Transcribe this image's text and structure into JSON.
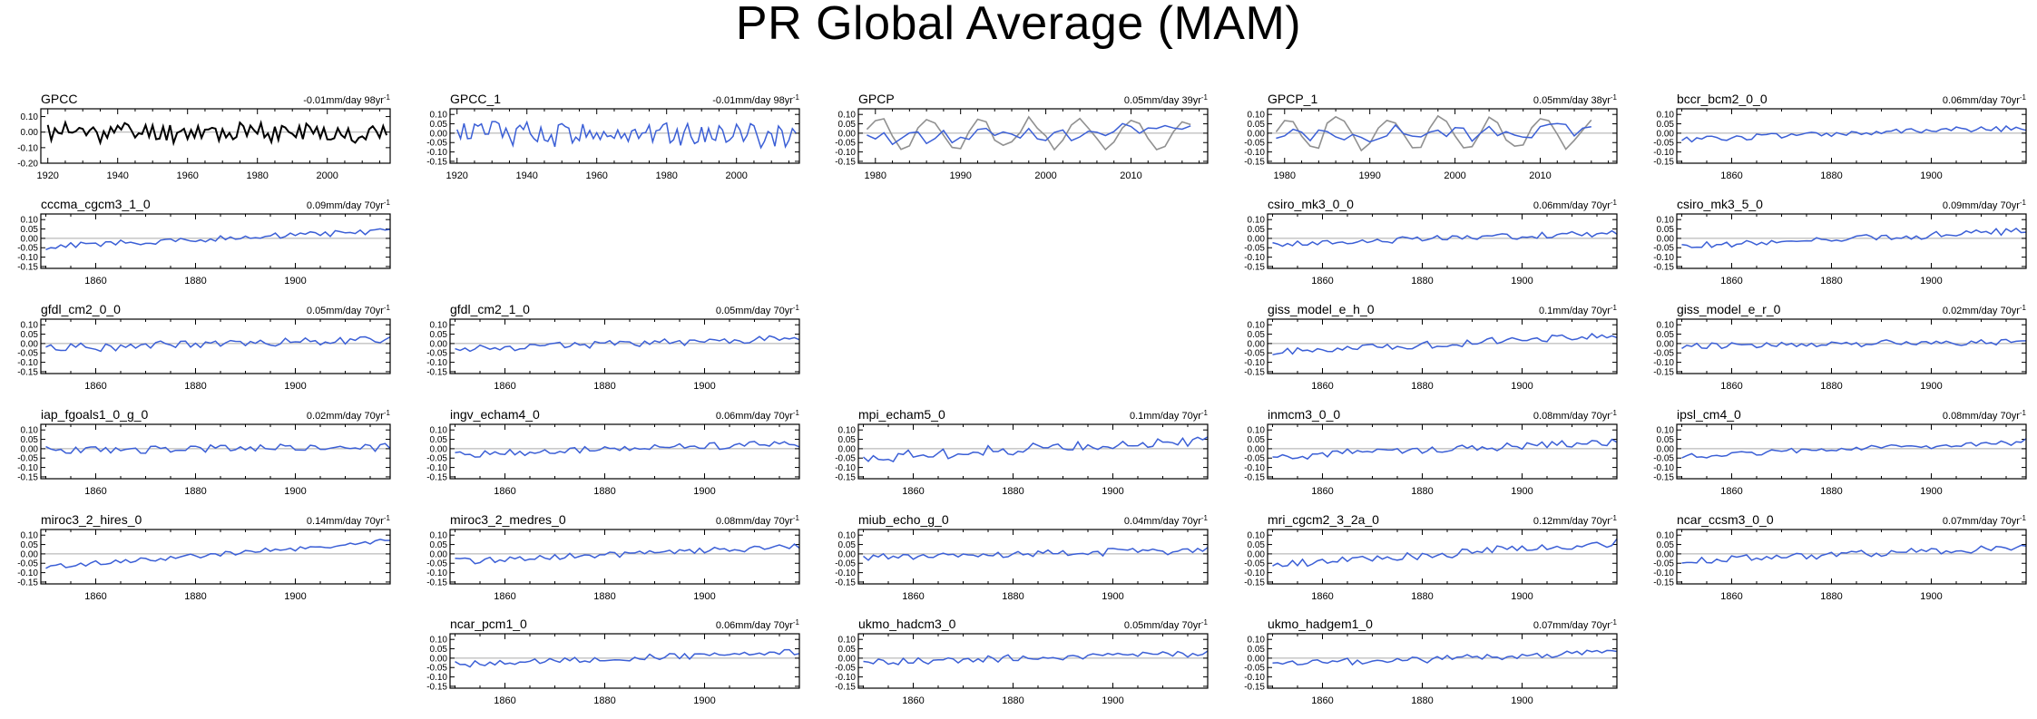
{
  "title": "PR Global Average (MAM)",
  "colors": {
    "model": "#3b5fd6",
    "obs": "#000000",
    "obs2": "#909090",
    "zero": "#aaaaaa"
  },
  "chart_data": [
    {
      "type": "line",
      "name": "GPCC",
      "trend": "-0.01mm/day 98yr",
      "xlim": [
        1918,
        2018
      ],
      "ylim": [
        -0.2,
        0.15
      ],
      "yticks": [
        "0.10",
        "0.00",
        "-0.10",
        "-0.20"
      ],
      "yvals": [
        0.1,
        0.0,
        -0.1,
        -0.2
      ],
      "xticks": [
        1920,
        1940,
        1960,
        1980,
        2000
      ],
      "color": "#000000",
      "seed": 11,
      "amp": 0.06,
      "slope": -0.0001,
      "n": 98,
      "x0": 1920
    },
    {
      "type": "line",
      "name": "GPCC_1",
      "trend": "-0.01mm/day 98yr",
      "xlim": [
        1918,
        2018
      ],
      "ylim": [
        -0.16,
        0.13
      ],
      "yticks": [
        "0.10",
        "0.05",
        "0.00",
        "-0.05",
        "-0.10",
        "-0.15"
      ],
      "yvals": [
        0.1,
        0.05,
        0.0,
        -0.05,
        -0.1,
        -0.15
      ],
      "xticks": [
        1920,
        1940,
        1960,
        1980,
        2000
      ],
      "color": "#3b5fd6",
      "seed": 12,
      "amp": 0.06,
      "slope": -0.0001,
      "n": 98,
      "x0": 1920
    },
    {
      "type": "line",
      "name": "GPCP",
      "trend": "0.05mm/day 39yr",
      "xlim": [
        1978,
        2019
      ],
      "ylim": [
        -0.16,
        0.13
      ],
      "yticks": [
        "0.10",
        "0.05",
        "0.00",
        "-0.05",
        "-0.10",
        "-0.15"
      ],
      "yvals": [
        0.1,
        0.05,
        0.0,
        -0.05,
        -0.1,
        -0.15
      ],
      "xticks": [
        1980,
        1990,
        2000,
        2010
      ],
      "color": "#3b5fd6",
      "seed": 13,
      "amp": 0.04,
      "slope": 0.0013,
      "n": 39,
      "x0": 1979,
      "second": {
        "color": "#909090",
        "seed": 31,
        "amp": 0.08,
        "period": 6
      }
    },
    {
      "type": "line",
      "name": "GPCP_1",
      "trend": "0.05mm/day 38yr",
      "xlim": [
        1978,
        2019
      ],
      "ylim": [
        -0.16,
        0.13
      ],
      "yticks": [
        "0.10",
        "0.05",
        "0.00",
        "-0.05",
        "-0.10",
        "-0.15"
      ],
      "yvals": [
        0.1,
        0.05,
        0.0,
        -0.05,
        -0.1,
        -0.15
      ],
      "xticks": [
        1980,
        1990,
        2000,
        2010
      ],
      "color": "#3b5fd6",
      "seed": 14,
      "amp": 0.04,
      "slope": 0.0013,
      "n": 38,
      "x0": 1979,
      "second": {
        "color": "#909090",
        "seed": 32,
        "amp": 0.08,
        "period": 6
      }
    },
    {
      "type": "line",
      "name": "bccr_bcm2_0_0",
      "trend": "0.06mm/day 70yr",
      "xlim": [
        1849,
        1919
      ],
      "ylim": [
        -0.16,
        0.13
      ],
      "yticks": [
        "0.10",
        "0.05",
        "0.00",
        "-0.05",
        "-0.10",
        "-0.15"
      ],
      "yvals": [
        0.1,
        0.05,
        0.0,
        -0.05,
        -0.1,
        -0.15
      ],
      "xticks": [
        1860,
        1880,
        1900
      ],
      "color": "#3b5fd6",
      "seed": 15,
      "amp": 0.015,
      "slope": 0.0009,
      "n": 70,
      "x0": 1850
    },
    {
      "type": "line",
      "name": "cccma_cgcm3_1_0",
      "trend": "0.09mm/day 70yr",
      "xlim": [
        1849,
        1919
      ],
      "ylim": [
        -0.16,
        0.13
      ],
      "yticks": [
        "0.10",
        "0.05",
        "0.00",
        "-0.05",
        "-0.10",
        "-0.15"
      ],
      "yvals": [
        0.1,
        0.05,
        0.0,
        -0.05,
        -0.1,
        -0.15
      ],
      "xticks": [
        1860,
        1880,
        1900
      ],
      "color": "#3b5fd6",
      "seed": 16,
      "amp": 0.015,
      "slope": 0.0013,
      "n": 70,
      "x0": 1850
    },
    {
      "type": "line",
      "name": "csiro_mk3_0_0",
      "trend": "0.06mm/day 70yr",
      "xlim": [
        1849,
        1919
      ],
      "ylim": [
        -0.16,
        0.13
      ],
      "yticks": [
        "0.10",
        "0.05",
        "0.00",
        "-0.05",
        "-0.10",
        "-0.15"
      ],
      "yvals": [
        0.1,
        0.05,
        0.0,
        -0.05,
        -0.1,
        -0.15
      ],
      "xticks": [
        1860,
        1880,
        1900
      ],
      "color": "#3b5fd6",
      "seed": 17,
      "amp": 0.015,
      "slope": 0.0009,
      "n": 70,
      "x0": 1850
    },
    {
      "type": "line",
      "name": "csiro_mk3_5_0",
      "trend": "0.09mm/day 70yr",
      "xlim": [
        1849,
        1919
      ],
      "ylim": [
        -0.16,
        0.13
      ],
      "yticks": [
        "0.10",
        "0.05",
        "0.00",
        "-0.05",
        "-0.10",
        "-0.15"
      ],
      "yvals": [
        0.1,
        0.05,
        0.0,
        -0.05,
        -0.1,
        -0.15
      ],
      "xticks": [
        1860,
        1880,
        1900
      ],
      "color": "#3b5fd6",
      "seed": 18,
      "amp": 0.017,
      "slope": 0.0013,
      "n": 70,
      "x0": 1850
    },
    {
      "type": "line",
      "name": "gfdl_cm2_0_0",
      "trend": "0.05mm/day 70yr",
      "xlim": [
        1849,
        1919
      ],
      "ylim": [
        -0.16,
        0.13
      ],
      "yticks": [
        "0.10",
        "0.05",
        "0.00",
        "-0.05",
        "-0.10",
        "-0.15"
      ],
      "yvals": [
        0.1,
        0.05,
        0.0,
        -0.05,
        -0.1,
        -0.15
      ],
      "xticks": [
        1860,
        1880,
        1900
      ],
      "color": "#3b5fd6",
      "seed": 19,
      "amp": 0.02,
      "slope": 0.0007,
      "n": 70,
      "x0": 1850
    },
    {
      "type": "line",
      "name": "gfdl_cm2_1_0",
      "trend": "0.05mm/day 70yr",
      "xlim": [
        1849,
        1919
      ],
      "ylim": [
        -0.16,
        0.13
      ],
      "yticks": [
        "0.10",
        "0.05",
        "0.00",
        "-0.05",
        "-0.10",
        "-0.15"
      ],
      "yvals": [
        0.1,
        0.05,
        0.0,
        -0.05,
        -0.1,
        -0.15
      ],
      "xticks": [
        1860,
        1880,
        1900
      ],
      "color": "#3b5fd6",
      "seed": 20,
      "amp": 0.017,
      "slope": 0.0007,
      "n": 70,
      "x0": 1850
    },
    {
      "type": "line",
      "name": "giss_model_e_h_0",
      "trend": "0.1mm/day 70yr",
      "xlim": [
        1849,
        1919
      ],
      "ylim": [
        -0.16,
        0.13
      ],
      "yticks": [
        "0.10",
        "0.05",
        "0.00",
        "-0.05",
        "-0.10",
        "-0.15"
      ],
      "yvals": [
        0.1,
        0.05,
        0.0,
        -0.05,
        -0.1,
        -0.15
      ],
      "xticks": [
        1860,
        1880,
        1900
      ],
      "color": "#3b5fd6",
      "seed": 21,
      "amp": 0.017,
      "slope": 0.0014,
      "n": 70,
      "x0": 1850
    },
    {
      "type": "line",
      "name": "giss_model_e_r_0",
      "trend": "0.02mm/day 70yr",
      "xlim": [
        1849,
        1919
      ],
      "ylim": [
        -0.16,
        0.13
      ],
      "yticks": [
        "0.10",
        "0.05",
        "0.00",
        "-0.05",
        "-0.10",
        "-0.15"
      ],
      "yvals": [
        0.1,
        0.05,
        0.0,
        -0.05,
        -0.1,
        -0.15
      ],
      "xticks": [
        1860,
        1880,
        1900
      ],
      "color": "#3b5fd6",
      "seed": 22,
      "amp": 0.015,
      "slope": 0.0003,
      "n": 70,
      "x0": 1850
    },
    {
      "type": "line",
      "name": "iap_fgoals1_0_g_0",
      "trend": "0.02mm/day 70yr",
      "xlim": [
        1849,
        1919
      ],
      "ylim": [
        -0.16,
        0.13
      ],
      "yticks": [
        "0.10",
        "0.05",
        "0.00",
        "-0.05",
        "-0.10",
        "-0.15"
      ],
      "yvals": [
        0.1,
        0.05,
        0.0,
        -0.05,
        -0.1,
        -0.15
      ],
      "xticks": [
        1860,
        1880,
        1900
      ],
      "color": "#3b5fd6",
      "seed": 23,
      "amp": 0.02,
      "slope": 0.0003,
      "n": 70,
      "x0": 1850
    },
    {
      "type": "line",
      "name": "ingv_echam4_0",
      "trend": "0.06mm/day 70yr",
      "xlim": [
        1849,
        1919
      ],
      "ylim": [
        -0.16,
        0.13
      ],
      "yticks": [
        "0.10",
        "0.05",
        "0.00",
        "-0.05",
        "-0.10",
        "-0.15"
      ],
      "yvals": [
        0.1,
        0.05,
        0.0,
        -0.05,
        -0.1,
        -0.15
      ],
      "xticks": [
        1860,
        1880,
        1900
      ],
      "color": "#3b5fd6",
      "seed": 24,
      "amp": 0.017,
      "slope": 0.0009,
      "n": 70,
      "x0": 1850
    },
    {
      "type": "line",
      "name": "mpi_echam5_0",
      "trend": "0.1mm/day 70yr",
      "xlim": [
        1849,
        1919
      ],
      "ylim": [
        -0.16,
        0.13
      ],
      "yticks": [
        "0.10",
        "0.05",
        "0.00",
        "-0.05",
        "-0.10",
        "-0.15"
      ],
      "yvals": [
        0.1,
        0.05,
        0.0,
        -0.05,
        -0.1,
        -0.15
      ],
      "xticks": [
        1860,
        1880,
        1900
      ],
      "color": "#3b5fd6",
      "seed": 25,
      "amp": 0.025,
      "slope": 0.0014,
      "n": 70,
      "x0": 1850
    },
    {
      "type": "line",
      "name": "inmcm3_0_0",
      "trend": "0.08mm/day 70yr",
      "xlim": [
        1849,
        1919
      ],
      "ylim": [
        -0.16,
        0.13
      ],
      "yticks": [
        "0.10",
        "0.05",
        "0.00",
        "-0.05",
        "-0.10",
        "-0.15"
      ],
      "yvals": [
        0.1,
        0.05,
        0.0,
        -0.05,
        -0.1,
        -0.15
      ],
      "xticks": [
        1860,
        1880,
        1900
      ],
      "color": "#3b5fd6",
      "seed": 26,
      "amp": 0.02,
      "slope": 0.0011,
      "n": 70,
      "x0": 1850
    },
    {
      "type": "line",
      "name": "ipsl_cm4_0",
      "trend": "0.08mm/day 70yr",
      "xlim": [
        1849,
        1919
      ],
      "ylim": [
        -0.16,
        0.13
      ],
      "yticks": [
        "0.10",
        "0.05",
        "0.00",
        "-0.05",
        "-0.10",
        "-0.15"
      ],
      "yvals": [
        0.1,
        0.05,
        0.0,
        -0.05,
        -0.1,
        -0.15
      ],
      "xticks": [
        1860,
        1880,
        1900
      ],
      "color": "#3b5fd6",
      "seed": 27,
      "amp": 0.015,
      "slope": 0.0011,
      "n": 70,
      "x0": 1850
    },
    {
      "type": "line",
      "name": "miroc3_2_hires_0",
      "trend": "0.14mm/day 70yr",
      "xlim": [
        1849,
        1919
      ],
      "ylim": [
        -0.16,
        0.13
      ],
      "yticks": [
        "0.10",
        "0.05",
        "0.00",
        "-0.05",
        "-0.10",
        "-0.15"
      ],
      "yvals": [
        0.1,
        0.05,
        0.0,
        -0.05,
        -0.1,
        -0.15
      ],
      "xticks": [
        1860,
        1880,
        1900
      ],
      "color": "#3b5fd6",
      "seed": 28,
      "amp": 0.012,
      "slope": 0.002,
      "n": 70,
      "x0": 1850
    },
    {
      "type": "line",
      "name": "miroc3_2_medres_0",
      "trend": "0.08mm/day 70yr",
      "xlim": [
        1849,
        1919
      ],
      "ylim": [
        -0.16,
        0.13
      ],
      "yticks": [
        "0.10",
        "0.05",
        "0.00",
        "-0.05",
        "-0.10",
        "-0.15"
      ],
      "yvals": [
        0.1,
        0.05,
        0.0,
        -0.05,
        -0.1,
        -0.15
      ],
      "xticks": [
        1860,
        1880,
        1900
      ],
      "color": "#3b5fd6",
      "seed": 29,
      "amp": 0.015,
      "slope": 0.0011,
      "n": 70,
      "x0": 1850
    },
    {
      "type": "line",
      "name": "miub_echo_g_0",
      "trend": "0.04mm/day 70yr",
      "xlim": [
        1849,
        1919
      ],
      "ylim": [
        -0.16,
        0.13
      ],
      "yticks": [
        "0.10",
        "0.05",
        "0.00",
        "-0.05",
        "-0.10",
        "-0.15"
      ],
      "yvals": [
        0.1,
        0.05,
        0.0,
        -0.05,
        -0.1,
        -0.15
      ],
      "xticks": [
        1860,
        1880,
        1900
      ],
      "color": "#3b5fd6",
      "seed": 30,
      "amp": 0.017,
      "slope": 0.0006,
      "n": 70,
      "x0": 1850
    },
    {
      "type": "line",
      "name": "mri_cgcm2_3_2a_0",
      "trend": "0.12mm/day 70yr",
      "xlim": [
        1849,
        1919
      ],
      "ylim": [
        -0.16,
        0.13
      ],
      "yticks": [
        "0.10",
        "0.05",
        "0.00",
        "-0.05",
        "-0.10",
        "-0.15"
      ],
      "yvals": [
        0.1,
        0.05,
        0.0,
        -0.05,
        -0.1,
        -0.15
      ],
      "xticks": [
        1860,
        1880,
        1900
      ],
      "color": "#3b5fd6",
      "seed": 33,
      "amp": 0.02,
      "slope": 0.0017,
      "n": 70,
      "x0": 1850
    },
    {
      "type": "line",
      "name": "ncar_ccsm3_0_0",
      "trend": "0.07mm/day 70yr",
      "xlim": [
        1849,
        1919
      ],
      "ylim": [
        -0.16,
        0.13
      ],
      "yticks": [
        "0.10",
        "0.05",
        "0.00",
        "-0.05",
        "-0.10",
        "-0.15"
      ],
      "yvals": [
        0.1,
        0.05,
        0.0,
        -0.05,
        -0.1,
        -0.15
      ],
      "xticks": [
        1860,
        1880,
        1900
      ],
      "color": "#3b5fd6",
      "seed": 34,
      "amp": 0.02,
      "slope": 0.001,
      "n": 70,
      "x0": 1850
    },
    {
      "type": "line",
      "name": "ncar_pcm1_0",
      "trend": "0.06mm/day 70yr",
      "xlim": [
        1849,
        1919
      ],
      "ylim": [
        -0.16,
        0.13
      ],
      "yticks": [
        "0.10",
        "0.05",
        "0.00",
        "-0.05",
        "-0.10",
        "-0.15"
      ],
      "yvals": [
        0.1,
        0.05,
        0.0,
        -0.05,
        -0.1,
        -0.15
      ],
      "xticks": [
        1860,
        1880,
        1900
      ],
      "color": "#3b5fd6",
      "seed": 35,
      "amp": 0.015,
      "slope": 0.0009,
      "n": 70,
      "x0": 1850
    },
    {
      "type": "line",
      "name": "ukmo_hadcm3_0",
      "trend": "0.05mm/day 70yr",
      "xlim": [
        1849,
        1919
      ],
      "ylim": [
        -0.16,
        0.13
      ],
      "yticks": [
        "0.10",
        "0.05",
        "0.00",
        "-0.05",
        "-0.10",
        "-0.15"
      ],
      "yvals": [
        0.1,
        0.05,
        0.0,
        -0.05,
        -0.1,
        -0.15
      ],
      "xticks": [
        1860,
        1880,
        1900
      ],
      "color": "#3b5fd6",
      "seed": 36,
      "amp": 0.017,
      "slope": 0.0007,
      "n": 70,
      "x0": 1850
    },
    {
      "type": "line",
      "name": "ukmo_hadgem1_0",
      "trend": "0.07mm/day 70yr",
      "xlim": [
        1849,
        1919
      ],
      "ylim": [
        -0.16,
        0.13
      ],
      "yticks": [
        "0.10",
        "0.05",
        "0.00",
        "-0.05",
        "-0.10",
        "-0.15"
      ],
      "yvals": [
        0.1,
        0.05,
        0.0,
        -0.05,
        -0.1,
        -0.15
      ],
      "xticks": [
        1860,
        1880,
        1900
      ],
      "color": "#3b5fd6",
      "seed": 37,
      "amp": 0.017,
      "slope": 0.001,
      "n": 70,
      "x0": 1850
    }
  ]
}
